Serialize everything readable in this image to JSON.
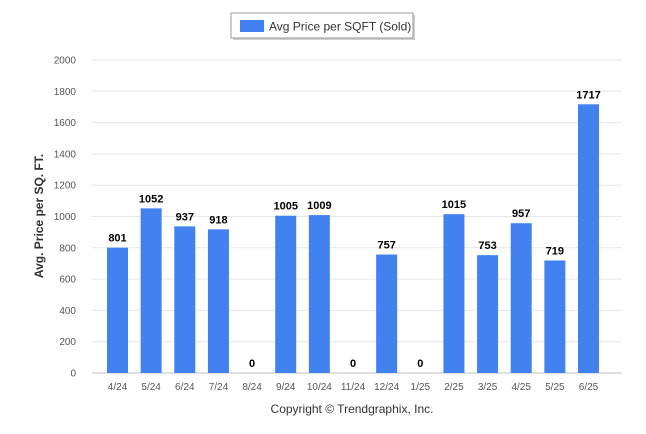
{
  "chart_data": {
    "type": "bar",
    "categories": [
      "4/24",
      "5/24",
      "6/24",
      "7/24",
      "8/24",
      "9/24",
      "10/24",
      "11/24",
      "12/24",
      "1/25",
      "2/25",
      "3/25",
      "4/25",
      "5/25",
      "6/25"
    ],
    "series": [
      {
        "name": "Avg Price per SQFT (Sold)",
        "values": [
          801,
          1052,
          937,
          918,
          0,
          1005,
          1009,
          0,
          757,
          0,
          1015,
          753,
          957,
          719,
          1717
        ]
      }
    ],
    "title": "",
    "xlabel": "",
    "ylabel": "Avg. Price per SQ. FT.",
    "ylim": [
      0,
      2000
    ],
    "yticks": [
      0,
      200,
      400,
      600,
      800,
      1000,
      1200,
      1400,
      1600,
      1800,
      2000
    ],
    "grid": true,
    "legend_position": "top-center",
    "bar_color": "#4282f0",
    "show_data_labels": true
  },
  "legend": {
    "label": "Avg Price per SQFT (Sold)",
    "color": "#4282f0"
  },
  "footer": {
    "copyright": "Copyright © Trendgraphix, Inc."
  }
}
